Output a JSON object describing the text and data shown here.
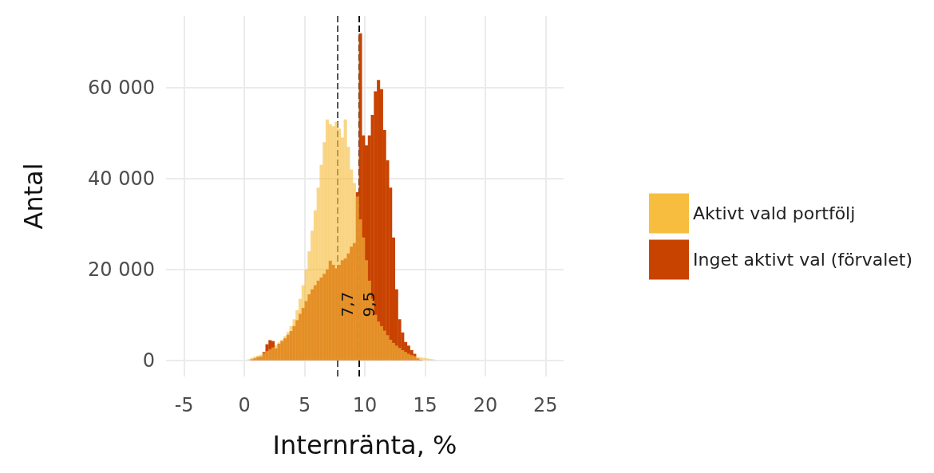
{
  "chart_data": {
    "type": "histogram",
    "xlabel": "Internränta, %",
    "ylabel": "Antal",
    "bins": [
      0,
      0.25,
      0.5,
      0.75,
      1,
      1.25,
      1.5,
      1.75,
      2,
      2.25,
      2.5,
      2.75,
      3,
      3.25,
      3.5,
      3.75,
      4,
      4.25,
      4.5,
      4.75,
      5,
      5.25,
      5.5,
      5.75,
      6,
      6.25,
      6.5,
      6.75,
      7,
      7.25,
      7.5,
      7.75,
      8,
      8.25,
      8.5,
      8.75,
      9,
      9.25,
      9.5,
      9.75,
      10,
      10.25,
      10.5,
      10.75,
      11,
      11.25,
      11.5,
      11.75,
      12,
      12.25,
      12.5,
      12.75,
      13,
      13.25,
      13.5,
      13.75,
      14,
      14.25,
      14.5,
      14.75,
      15,
      15.25,
      15.5,
      15.75,
      16
    ],
    "series": [
      {
        "name": "Aktivt vald portfölj",
        "color": "#f6bd3f",
        "values": [
          0,
          200,
          500,
          800,
          1000,
          1200,
          1600,
          2000,
          2400,
          2800,
          3300,
          3900,
          4500,
          5300,
          6200,
          7500,
          9000,
          11000,
          13500,
          16500,
          20000,
          24000,
          28500,
          33000,
          38000,
          43000,
          48000,
          53000,
          52000,
          51500,
          52500,
          51000,
          49000,
          53000,
          47000,
          42000,
          39000,
          36000,
          31000,
          27000,
          22000,
          17500,
          13500,
          10000,
          8500,
          7500,
          6500,
          5500,
          4500,
          3800,
          3200,
          2700,
          2200,
          1800,
          1400,
          1100,
          900,
          700,
          600,
          500,
          400,
          300,
          200,
          0
        ]
      },
      {
        "name": "Inget aktivt val (förvalet)",
        "color": "#c84200",
        "values": [
          0,
          0,
          200,
          400,
          700,
          800,
          1800,
          3500,
          4400,
          4200,
          2600,
          3600,
          4200,
          4800,
          5600,
          6400,
          7500,
          8800,
          10200,
          11500,
          13000,
          14500,
          15600,
          16500,
          17500,
          18200,
          19000,
          20000,
          21900,
          21000,
          20200,
          21000,
          22000,
          22400,
          23500,
          25000,
          25800,
          37000,
          72000,
          49500,
          47300,
          49500,
          54000,
          59200,
          61700,
          59700,
          50700,
          44000,
          38000,
          27000,
          15600,
          9000,
          6100,
          4000,
          3200,
          2200,
          1400,
          400,
          100,
          0,
          0,
          0,
          0,
          0
        ]
      }
    ],
    "xlim": [
      -6.5,
      26.5
    ],
    "xticks": [
      -5,
      0,
      5,
      10,
      15,
      20,
      25
    ],
    "ylim": [
      -3600,
      75800
    ],
    "yticks": [
      0,
      {
        "value": 20000,
        "label": "20 000"
      },
      {
        "value": 40000,
        "label": "40 000"
      },
      {
        "value": 60000,
        "label": "60 000"
      }
    ],
    "ref_lines": [
      {
        "axis": "x",
        "value": 7.7,
        "label": "7,7",
        "color": "#555555",
        "line_style": "dashed"
      },
      {
        "axis": "x",
        "value": 9.5,
        "label": "9,5",
        "color": "#111111",
        "line_style": "dashed"
      }
    ],
    "grid": true,
    "legend": "right"
  }
}
